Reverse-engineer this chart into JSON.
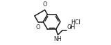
{
  "bg_color": "#ffffff",
  "line_color": "#1a1a1a",
  "line_width": 1.1,
  "figsize": [
    1.6,
    0.65
  ],
  "dpi": 100,
  "xlim": [
    0,
    1.0
  ],
  "ylim": [
    0.05,
    0.95
  ]
}
